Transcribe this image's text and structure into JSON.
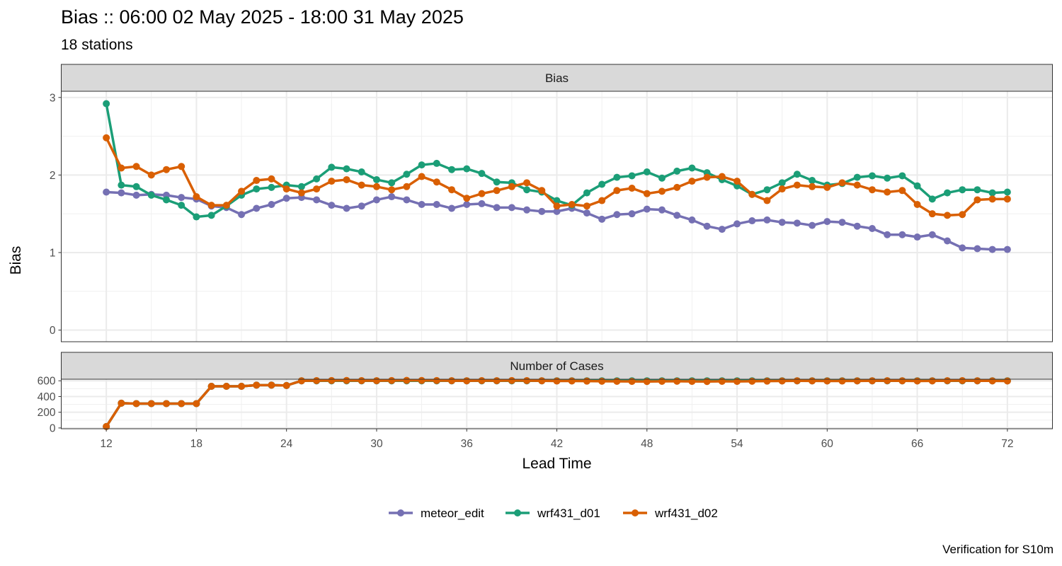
{
  "chart_data": {
    "type": "line",
    "title": "Bias :: 06:00 02 May 2025 - 18:00 31 May 2025",
    "subtitle": "18 stations",
    "caption": "Verification for S10m",
    "xlabel": "Lead Time",
    "ylabel": "Bias",
    "x_ticks": [
      12,
      18,
      24,
      30,
      36,
      42,
      48,
      54,
      60,
      66,
      72
    ],
    "xlim": [
      9,
      75
    ],
    "legend_position": "bottom",
    "grid": true,
    "x": [
      12,
      13,
      14,
      15,
      16,
      17,
      18,
      19,
      20,
      21,
      22,
      23,
      24,
      25,
      26,
      27,
      28,
      29,
      30,
      31,
      32,
      33,
      34,
      35,
      36,
      37,
      38,
      39,
      40,
      41,
      42,
      43,
      44,
      45,
      46,
      47,
      48,
      49,
      50,
      51,
      52,
      53,
      54,
      55,
      56,
      57,
      58,
      59,
      60,
      61,
      62,
      63,
      64,
      65,
      66,
      67,
      68,
      69,
      70,
      71,
      72
    ],
    "panels": [
      {
        "strip": "Bias",
        "ylim": [
          -0.15,
          3.08
        ],
        "y_ticks": [
          0,
          1,
          2,
          3
        ],
        "series": [
          {
            "name": "meteor_edit",
            "color": "#7570B3",
            "values": [
              1.78,
              1.77,
              1.74,
              1.75,
              1.74,
              1.71,
              1.69,
              1.6,
              1.58,
              1.49,
              1.57,
              1.62,
              1.7,
              1.71,
              1.68,
              1.61,
              1.57,
              1.6,
              1.68,
              1.72,
              1.68,
              1.62,
              1.62,
              1.57,
              1.62,
              1.63,
              1.58,
              1.58,
              1.55,
              1.53,
              1.53,
              1.57,
              1.51,
              1.43,
              1.49,
              1.5,
              1.56,
              1.55,
              1.48,
              1.42,
              1.34,
              1.3,
              1.37,
              1.41,
              1.42,
              1.39,
              1.38,
              1.35,
              1.4,
              1.39,
              1.34,
              1.31,
              1.23,
              1.23,
              1.2,
              1.23,
              1.15,
              1.06,
              1.05,
              1.04,
              1.04
            ]
          },
          {
            "name": "wrf431_d01",
            "color": "#1B9E77",
            "values": [
              2.92,
              1.87,
              1.85,
              1.74,
              1.68,
              1.61,
              1.46,
              1.48,
              1.6,
              1.74,
              1.82,
              1.84,
              1.87,
              1.85,
              1.95,
              2.1,
              2.08,
              2.04,
              1.94,
              1.9,
              2.01,
              2.13,
              2.15,
              2.07,
              2.08,
              2.02,
              1.91,
              1.9,
              1.81,
              1.78,
              1.67,
              1.61,
              1.77,
              1.88,
              1.97,
              1.99,
              2.04,
              1.96,
              2.05,
              2.09,
              2.03,
              1.94,
              1.86,
              1.75,
              1.81,
              1.9,
              2.01,
              1.93,
              1.87,
              1.89,
              1.97,
              1.99,
              1.96,
              1.99,
              1.86,
              1.69,
              1.77,
              1.81,
              1.81,
              1.77,
              1.78
            ]
          },
          {
            "name": "wrf431_d02",
            "color": "#D95F02",
            "values": [
              2.48,
              2.09,
              2.11,
              2.0,
              2.07,
              2.11,
              1.72,
              1.61,
              1.61,
              1.79,
              1.93,
              1.95,
              1.82,
              1.77,
              1.82,
              1.92,
              1.94,
              1.87,
              1.85,
              1.81,
              1.85,
              1.98,
              1.91,
              1.81,
              1.7,
              1.76,
              1.8,
              1.85,
              1.9,
              1.8,
              1.6,
              1.62,
              1.6,
              1.67,
              1.8,
              1.83,
              1.76,
              1.79,
              1.84,
              1.92,
              1.97,
              1.98,
              1.92,
              1.75,
              1.67,
              1.82,
              1.87,
              1.85,
              1.84,
              1.9,
              1.87,
              1.81,
              1.78,
              1.8,
              1.62,
              1.5,
              1.48,
              1.49,
              1.68,
              1.69,
              1.69
            ]
          }
        ]
      },
      {
        "strip": "Number of Cases",
        "ylim": [
          -10,
          620
        ],
        "y_ticks": [
          0,
          200,
          400,
          600
        ],
        "series": [
          {
            "name": "meteor_edit",
            "color": "#7570B3",
            "values": [
              18,
              315,
              310,
              310,
              310,
              310,
              310,
              530,
              530,
              530,
              545,
              545,
              540,
              600,
              600,
              600,
              600,
              600,
              600,
              600,
              600,
              600,
              600,
              600,
              600,
              600,
              600,
              600,
              600,
              600,
              600,
              600,
              600,
              600,
              600,
              600,
              600,
              600,
              600,
              600,
              600,
              600,
              600,
              600,
              600,
              600,
              600,
              600,
              600,
              600,
              600,
              600,
              600,
              600,
              600,
              600,
              600,
              600,
              600,
              600,
              600
            ]
          },
          {
            "name": "wrf431_d01",
            "color": "#1B9E77",
            "values": [
              18,
              315,
              310,
              310,
              310,
              310,
              310,
              530,
              530,
              530,
              545,
              545,
              540,
              600,
              600,
              600,
              600,
              600,
              600,
              600,
              600,
              600,
              600,
              600,
              600,
              600,
              600,
              600,
              600,
              600,
              600,
              600,
              600,
              600,
              600,
              600,
              600,
              600,
              600,
              600,
              600,
              600,
              600,
              600,
              600,
              600,
              600,
              600,
              600,
              600,
              600,
              600,
              600,
              600,
              600,
              600,
              600,
              600,
              600,
              600,
              600
            ]
          },
          {
            "name": "wrf431_d02",
            "color": "#D95F02",
            "values": [
              18,
              315,
              310,
              310,
              310,
              310,
              310,
              530,
              530,
              530,
              545,
              545,
              540,
              600,
              602,
              603,
              604,
              602,
              601,
              603,
              605,
              604,
              603,
              601,
              600,
              602,
              601,
              603,
              602,
              600,
              597,
              598,
              596,
              594,
              593,
              592,
              591,
              593,
              594,
              592,
              591,
              593,
              592,
              594,
              596,
              598,
              600,
              599,
              598,
              597,
              599,
              600,
              601,
              600,
              598,
              599,
              601,
              602,
              600,
              599,
              598
            ]
          }
        ]
      }
    ],
    "legend": [
      "meteor_edit",
      "wrf431_d01",
      "wrf431_d02"
    ]
  }
}
